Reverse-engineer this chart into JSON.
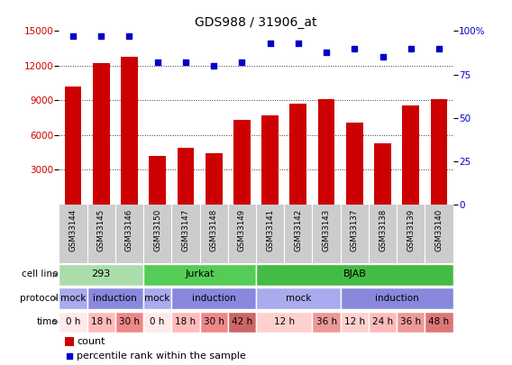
{
  "title": "GDS988 / 31906_at",
  "samples": [
    "GSM33144",
    "GSM33145",
    "GSM33146",
    "GSM33150",
    "GSM33147",
    "GSM33148",
    "GSM33149",
    "GSM33141",
    "GSM33142",
    "GSM33143",
    "GSM33137",
    "GSM33138",
    "GSM33139",
    "GSM33140"
  ],
  "counts": [
    10200,
    12200,
    12800,
    4200,
    4900,
    4400,
    7300,
    7700,
    8700,
    9100,
    7100,
    5300,
    8600,
    9100
  ],
  "percentile": [
    97,
    97,
    97,
    82,
    82,
    80,
    82,
    93,
    93,
    88,
    90,
    85,
    90,
    90
  ],
  "ylim_left": [
    0,
    15000
  ],
  "ylim_right": [
    0,
    100
  ],
  "yticks_left": [
    3000,
    6000,
    9000,
    12000,
    15000
  ],
  "yticks_right": [
    0,
    25,
    50,
    75,
    100
  ],
  "bar_color": "#cc0000",
  "dot_color": "#0000cc",
  "cell_line_groups": [
    {
      "label": "293",
      "start": 0,
      "end": 3,
      "color": "#aaddaa"
    },
    {
      "label": "Jurkat",
      "start": 3,
      "end": 7,
      "color": "#55cc55"
    },
    {
      "label": "BJAB",
      "start": 7,
      "end": 14,
      "color": "#44bb44"
    }
  ],
  "protocol_groups": [
    {
      "label": "mock",
      "start": 0,
      "end": 1,
      "color": "#aaaaee"
    },
    {
      "label": "induction",
      "start": 1,
      "end": 3,
      "color": "#8888dd"
    },
    {
      "label": "mock",
      "start": 3,
      "end": 4,
      "color": "#aaaaee"
    },
    {
      "label": "induction",
      "start": 4,
      "end": 7,
      "color": "#8888dd"
    },
    {
      "label": "mock",
      "start": 7,
      "end": 10,
      "color": "#aaaaee"
    },
    {
      "label": "induction",
      "start": 10,
      "end": 14,
      "color": "#8888dd"
    }
  ],
  "time_groups": [
    {
      "label": "0 h",
      "start": 0,
      "end": 1,
      "color": "#ffeaea"
    },
    {
      "label": "18 h",
      "start": 1,
      "end": 2,
      "color": "#ffbbbb"
    },
    {
      "label": "30 h",
      "start": 2,
      "end": 3,
      "color": "#ee8888"
    },
    {
      "label": "0 h",
      "start": 3,
      "end": 4,
      "color": "#ffeaea"
    },
    {
      "label": "18 h",
      "start": 4,
      "end": 5,
      "color": "#ffbbbb"
    },
    {
      "label": "30 h",
      "start": 5,
      "end": 6,
      "color": "#ee8888"
    },
    {
      "label": "42 h",
      "start": 6,
      "end": 7,
      "color": "#cc6666"
    },
    {
      "label": "12 h",
      "start": 7,
      "end": 9,
      "color": "#ffd0d0"
    },
    {
      "label": "36 h",
      "start": 9,
      "end": 10,
      "color": "#ee9999"
    },
    {
      "label": "12 h",
      "start": 10,
      "end": 11,
      "color": "#ffd0d0"
    },
    {
      "label": "24 h",
      "start": 11,
      "end": 12,
      "color": "#ffbbbb"
    },
    {
      "label": "36 h",
      "start": 12,
      "end": 13,
      "color": "#ee9999"
    },
    {
      "label": "48 h",
      "start": 13,
      "end": 14,
      "color": "#dd7777"
    }
  ],
  "xtick_bg": "#cccccc",
  "bg_color": "#ffffff",
  "grid_color": "#333333",
  "tick_fontsize": 7.5,
  "title_fontsize": 10
}
